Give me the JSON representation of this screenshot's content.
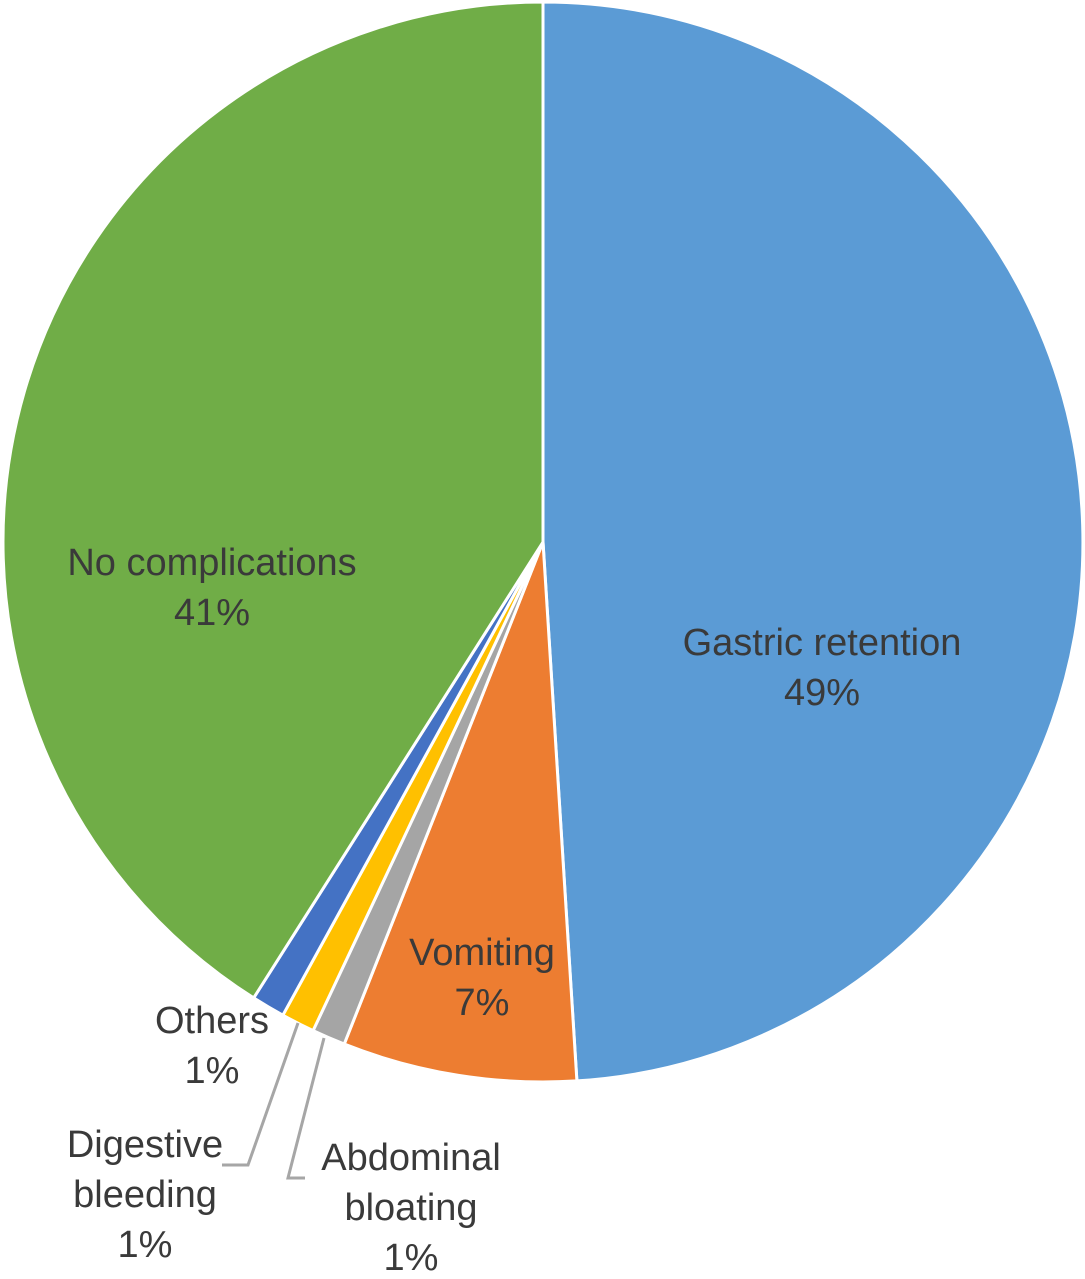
{
  "chart_data": {
    "type": "pie",
    "title": "",
    "slices": [
      {
        "name": "Gastric retention",
        "value": 49,
        "label": "49%",
        "color": "#5b9bd5"
      },
      {
        "name": "Vomiting",
        "value": 7,
        "label": "7%",
        "color": "#ed7d31"
      },
      {
        "name": "Abdominal bloating",
        "value": 1,
        "label": "1%",
        "color": "#a5a5a5"
      },
      {
        "name": "Digestive bleeding",
        "value": 1,
        "label": "1%",
        "color": "#ffc000"
      },
      {
        "name": "Others",
        "value": 1,
        "label": "1%",
        "color": "#4472c4"
      },
      {
        "name": "No complications",
        "value": 41,
        "label": "41%",
        "color": "#70ad47"
      }
    ],
    "legend": "none",
    "data_labels": "category name and percentage"
  },
  "labels": {
    "gastric": {
      "line1": "Gastric retention",
      "line2": "49%"
    },
    "vomiting": {
      "line1": "Vomiting",
      "line2": "7%"
    },
    "abdominal": {
      "line1": "Abdominal",
      "line2": "bloating",
      "line3": "1%"
    },
    "digestive": {
      "line1": "Digestive",
      "line2": "bleeding",
      "line3": "1%"
    },
    "others": {
      "line1": "Others",
      "line2": "1%"
    },
    "nocomp": {
      "line1": "No complications",
      "line2": "41%"
    }
  }
}
